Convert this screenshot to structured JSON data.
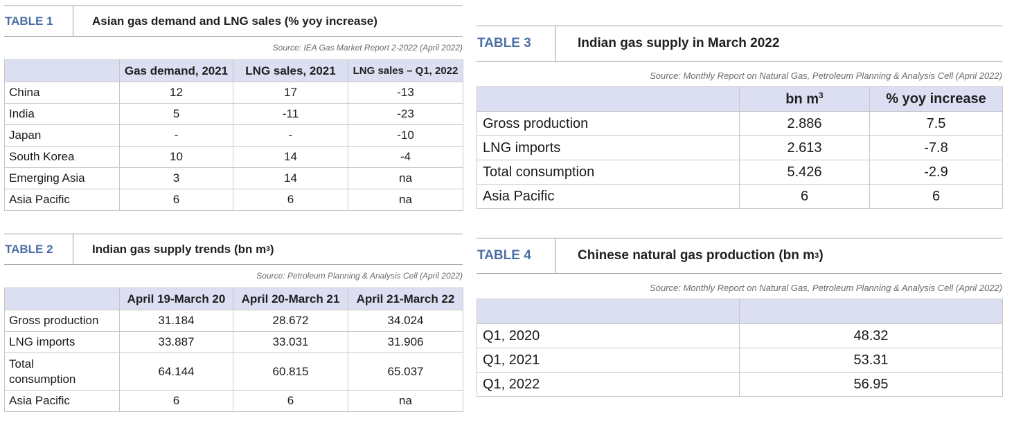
{
  "table1": {
    "tag": "TABLE 1",
    "title": "Asian gas demand and LNG sales (% yoy increase)",
    "source": "Source: IEA Gas Market Report 2-2022 (April 2022)",
    "columns": [
      "",
      "Gas demand, 2021",
      "LNG sales, 2021",
      "LNG sales – Q1, 2022"
    ],
    "rows": [
      {
        "label": "China",
        "c1": "12",
        "c2": "17",
        "c3": "-13"
      },
      {
        "label": "India",
        "c1": "5",
        "c2": "-11",
        "c3": "-23"
      },
      {
        "label": "Japan",
        "c1": "-",
        "c2": "-",
        "c3": "-10"
      },
      {
        "label": "South Korea",
        "c1": "10",
        "c2": "14",
        "c3": "-4"
      },
      {
        "label": "Emerging Asia",
        "c1": "3",
        "c2": "14",
        "c3": "na"
      },
      {
        "label": "Asia Pacific",
        "c1": "6",
        "c2": "6",
        "c3": "na"
      }
    ]
  },
  "table2": {
    "tag": "TABLE 2",
    "title_main": "Indian gas supply trends (bn m",
    "title_sup": "3",
    "title_end": ")",
    "source": "Source: Petroleum Planning & Analysis Cell (April 2022)",
    "columns": [
      "",
      "April 19-March 20",
      "April 20-March 21",
      "April 21-March 22"
    ],
    "rows": [
      {
        "label": "Gross production",
        "c1": "31.184",
        "c2": "28.672",
        "c3": "34.024"
      },
      {
        "label": "LNG imports",
        "c1": "33.887",
        "c2": "33.031",
        "c3": "31.906"
      },
      {
        "label": "Total consumption",
        "c1": "64.144",
        "c2": "60.815",
        "c3": "65.037"
      },
      {
        "label": "Asia Pacific",
        "c1": "6",
        "c2": "6",
        "c3": "na"
      }
    ]
  },
  "table3": {
    "tag": "TABLE 3",
    "title": "Indian gas supply in March 2022",
    "source": "Source: Monthly Report on Natural Gas, Petroleum Planning & Analysis Cell (April 2022)",
    "col1_main": "bn m",
    "col1_sup": "3",
    "col2": "% yoy increase",
    "rows": [
      {
        "label": "Gross production",
        "c1": "2.886",
        "c2": "7.5"
      },
      {
        "label": "LNG imports",
        "c1": "2.613",
        "c2": "-7.8"
      },
      {
        "label": "Total consumption",
        "c1": "5.426",
        "c2": "-2.9"
      },
      {
        "label": "Asia Pacific",
        "c1": "6",
        "c2": "6"
      }
    ]
  },
  "table4": {
    "tag": "TABLE 4",
    "title_main": "Chinese natural gas production (bn m",
    "title_sup": "3",
    "title_end": ")",
    "source": "Source: Monthly Report on Natural Gas, Petroleum Planning & Analysis Cell (April 2022)",
    "rows": [
      {
        "label": "Q1, 2020",
        "c1": "48.32"
      },
      {
        "label": "Q1, 2021",
        "c1": "53.31"
      },
      {
        "label": "Q1, 2022",
        "c1": "56.95"
      }
    ]
  }
}
